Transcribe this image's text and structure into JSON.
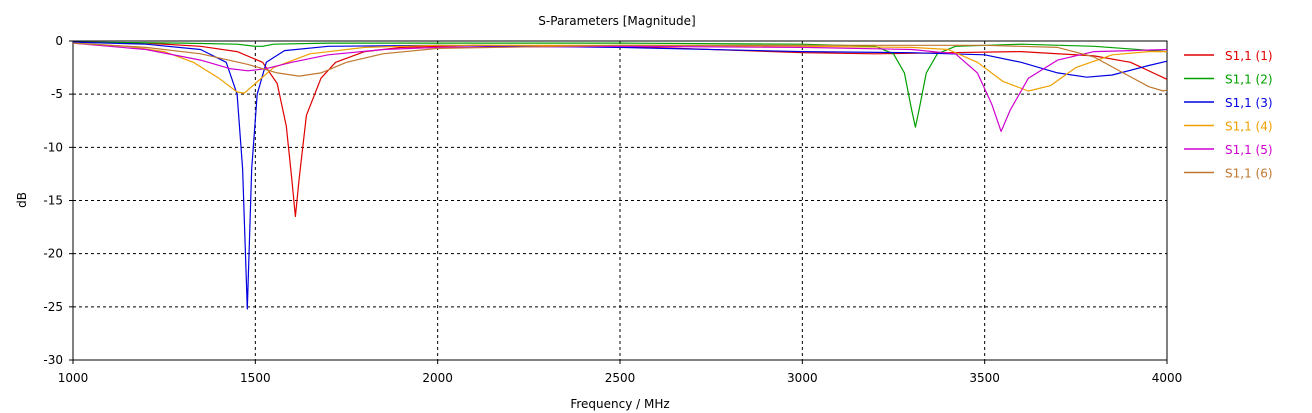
{
  "chart_data": {
    "type": "line",
    "title": "S-Parameters [Magnitude]",
    "xlabel": "Frequency / MHz",
    "ylabel": "dB",
    "xlim": [
      1000,
      4000
    ],
    "ylim": [
      -30,
      0
    ],
    "xticks": [
      1000,
      1500,
      2000,
      2500,
      3000,
      3500,
      4000
    ],
    "yticks": [
      0,
      -5,
      -10,
      -15,
      -20,
      -25,
      -30
    ],
    "grid": true,
    "legend_position": "right",
    "series": [
      {
        "name": "S1,1 (1)",
        "color": "#e00000",
        "points": [
          [
            1000,
            -0.1
          ],
          [
            1200,
            -0.2
          ],
          [
            1350,
            -0.5
          ],
          [
            1450,
            -1.0
          ],
          [
            1520,
            -2.0
          ],
          [
            1560,
            -4.0
          ],
          [
            1585,
            -8.0
          ],
          [
            1600,
            -13.0
          ],
          [
            1610,
            -16.5
          ],
          [
            1620,
            -13.0
          ],
          [
            1640,
            -7.0
          ],
          [
            1680,
            -3.5
          ],
          [
            1720,
            -2.0
          ],
          [
            1800,
            -1.0
          ],
          [
            1900,
            -0.6
          ],
          [
            2100,
            -0.4
          ],
          [
            2500,
            -0.5
          ],
          [
            3000,
            -1.1
          ],
          [
            3200,
            -1.2
          ],
          [
            3400,
            -1.1
          ],
          [
            3600,
            -1.0
          ],
          [
            3800,
            -1.4
          ],
          [
            3900,
            -2.0
          ],
          [
            4000,
            -3.6
          ]
        ]
      },
      {
        "name": "S1,1 (2)",
        "color": "#00a000",
        "points": [
          [
            1000,
            -0.1
          ],
          [
            1300,
            -0.2
          ],
          [
            1450,
            -0.3
          ],
          [
            1500,
            -0.5
          ],
          [
            1520,
            -0.5
          ],
          [
            1550,
            -0.3
          ],
          [
            1700,
            -0.2
          ],
          [
            2000,
            -0.2
          ],
          [
            2500,
            -0.2
          ],
          [
            3000,
            -0.3
          ],
          [
            3200,
            -0.5
          ],
          [
            3250,
            -1.2
          ],
          [
            3280,
            -3.0
          ],
          [
            3300,
            -6.5
          ],
          [
            3310,
            -8.1
          ],
          [
            3320,
            -6.5
          ],
          [
            3340,
            -3.0
          ],
          [
            3370,
            -1.2
          ],
          [
            3420,
            -0.5
          ],
          [
            3600,
            -0.3
          ],
          [
            3800,
            -0.5
          ],
          [
            4000,
            -1.0
          ]
        ]
      },
      {
        "name": "S1,1 (3)",
        "color": "#0000e0",
        "points": [
          [
            1000,
            -0.1
          ],
          [
            1200,
            -0.3
          ],
          [
            1350,
            -0.8
          ],
          [
            1420,
            -2.0
          ],
          [
            1450,
            -5.0
          ],
          [
            1465,
            -12.0
          ],
          [
            1478,
            -25.2
          ],
          [
            1490,
            -12.0
          ],
          [
            1505,
            -5.0
          ],
          [
            1530,
            -2.0
          ],
          [
            1580,
            -0.9
          ],
          [
            1700,
            -0.5
          ],
          [
            2000,
            -0.4
          ],
          [
            2500,
            -0.6
          ],
          [
            3000,
            -1.0
          ],
          [
            3300,
            -1.1
          ],
          [
            3500,
            -1.3
          ],
          [
            3600,
            -2.0
          ],
          [
            3700,
            -3.0
          ],
          [
            3780,
            -3.4
          ],
          [
            3850,
            -3.2
          ],
          [
            3950,
            -2.3
          ],
          [
            4000,
            -1.9
          ]
        ]
      },
      {
        "name": "S1,1 (4)",
        "color": "#f0a000",
        "points": [
          [
            1000,
            -0.2
          ],
          [
            1150,
            -0.5
          ],
          [
            1250,
            -1.0
          ],
          [
            1330,
            -2.0
          ],
          [
            1400,
            -3.5
          ],
          [
            1450,
            -4.8
          ],
          [
            1470,
            -4.9
          ],
          [
            1500,
            -4.0
          ],
          [
            1550,
            -2.5
          ],
          [
            1650,
            -1.2
          ],
          [
            1800,
            -0.6
          ],
          [
            2000,
            -0.4
          ],
          [
            2500,
            -0.4
          ],
          [
            3000,
            -0.5
          ],
          [
            3300,
            -0.6
          ],
          [
            3400,
            -0.8
          ],
          [
            3480,
            -2.0
          ],
          [
            3550,
            -3.8
          ],
          [
            3620,
            -4.7
          ],
          [
            3680,
            -4.2
          ],
          [
            3750,
            -2.5
          ],
          [
            3850,
            -1.3
          ],
          [
            3950,
            -1.0
          ],
          [
            4000,
            -1.0
          ]
        ]
      },
      {
        "name": "S1,1 (5)",
        "color": "#d000d0",
        "points": [
          [
            1000,
            -0.2
          ],
          [
            1200,
            -0.8
          ],
          [
            1350,
            -1.8
          ],
          [
            1430,
            -2.6
          ],
          [
            1480,
            -2.8
          ],
          [
            1530,
            -2.6
          ],
          [
            1600,
            -2.0
          ],
          [
            1700,
            -1.3
          ],
          [
            1850,
            -0.8
          ],
          [
            2000,
            -0.6
          ],
          [
            2500,
            -0.5
          ],
          [
            3000,
            -0.6
          ],
          [
            3300,
            -0.8
          ],
          [
            3420,
            -1.2
          ],
          [
            3480,
            -3.0
          ],
          [
            3520,
            -6.0
          ],
          [
            3545,
            -8.5
          ],
          [
            3570,
            -6.5
          ],
          [
            3620,
            -3.5
          ],
          [
            3700,
            -1.8
          ],
          [
            3800,
            -1.0
          ],
          [
            3900,
            -0.9
          ],
          [
            4000,
            -0.8
          ]
        ]
      },
      {
        "name": "S1,1 (6)",
        "color": "#c07830",
        "points": [
          [
            1000,
            -0.2
          ],
          [
            1200,
            -0.6
          ],
          [
            1350,
            -1.2
          ],
          [
            1480,
            -2.2
          ],
          [
            1560,
            -3.0
          ],
          [
            1620,
            -3.3
          ],
          [
            1680,
            -3.0
          ],
          [
            1750,
            -2.0
          ],
          [
            1850,
            -1.2
          ],
          [
            2000,
            -0.7
          ],
          [
            2500,
            -0.4
          ],
          [
            3000,
            -0.4
          ],
          [
            3500,
            -0.4
          ],
          [
            3700,
            -0.6
          ],
          [
            3800,
            -1.5
          ],
          [
            3880,
            -3.0
          ],
          [
            3950,
            -4.3
          ],
          [
            3990,
            -4.7
          ],
          [
            4000,
            -4.6
          ]
        ]
      }
    ]
  }
}
